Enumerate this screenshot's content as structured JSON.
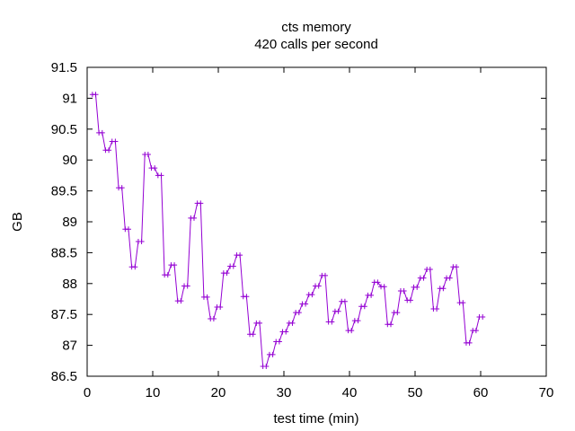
{
  "chart_data": {
    "type": "line",
    "title": "cts memory",
    "subtitle": "420 calls per second",
    "xlabel": "test time (min)",
    "ylabel": "GB",
    "xlim": [
      0,
      70
    ],
    "ylim": [
      86.5,
      91.5
    ],
    "x_ticks": [
      0,
      10,
      20,
      30,
      40,
      50,
      60,
      70
    ],
    "y_ticks": [
      86.5,
      87,
      87.5,
      88,
      88.5,
      89,
      89.5,
      90,
      90.5,
      91,
      91.5
    ],
    "x_tick_labels": [
      "0",
      "10",
      "20",
      "30",
      "40",
      "50",
      "60",
      "70"
    ],
    "y_tick_labels": [
      "86.5",
      "87",
      "87.5",
      "88",
      "88.5",
      "89",
      "89.5",
      "90",
      "90.5",
      "91",
      "91.5"
    ],
    "grid": false,
    "marker": "plus",
    "color": "#9400d3",
    "x": [
      0.8,
      1.3,
      1.8,
      2.3,
      2.8,
      3.3,
      3.8,
      4.3,
      4.8,
      5.3,
      5.8,
      6.3,
      6.8,
      7.3,
      7.8,
      8.3,
      8.8,
      9.3,
      9.8,
      10.3,
      10.8,
      11.3,
      11.8,
      12.3,
      12.8,
      13.3,
      13.8,
      14.3,
      14.8,
      15.3,
      15.8,
      16.3,
      16.8,
      17.3,
      17.8,
      18.3,
      18.8,
      19.3,
      19.8,
      20.3,
      20.8,
      21.3,
      21.8,
      22.3,
      22.8,
      23.3,
      23.8,
      24.3,
      24.8,
      25.3,
      25.8,
      26.3,
      26.8,
      27.3,
      27.8,
      28.3,
      28.8,
      29.3,
      29.8,
      30.3,
      30.8,
      31.3,
      31.8,
      32.3,
      32.8,
      33.3,
      33.8,
      34.3,
      34.8,
      35.3,
      35.8,
      36.3,
      36.8,
      37.3,
      37.8,
      38.3,
      38.8,
      39.3,
      39.8,
      40.3,
      40.8,
      41.3,
      41.8,
      42.3,
      42.8,
      43.3,
      43.8,
      44.3,
      44.8,
      45.3,
      45.8,
      46.3,
      46.8,
      47.3,
      47.8,
      48.3,
      48.8,
      49.3,
      49.8,
      50.3,
      50.8,
      51.3,
      51.8,
      52.3,
      52.8,
      53.3,
      53.8,
      54.3,
      54.8,
      55.3,
      55.8,
      56.3,
      56.8,
      57.3,
      57.8,
      58.3,
      58.8,
      59.3,
      59.8,
      60.3
    ],
    "y": [
      91.06,
      91.06,
      90.44,
      90.44,
      90.16,
      90.16,
      90.3,
      90.3,
      89.55,
      89.55,
      88.88,
      88.88,
      88.27,
      88.27,
      88.68,
      88.68,
      90.09,
      90.09,
      89.87,
      89.87,
      89.75,
      89.75,
      88.14,
      88.14,
      88.3,
      88.3,
      87.72,
      87.72,
      87.96,
      87.96,
      89.06,
      89.06,
      89.3,
      89.3,
      87.78,
      87.78,
      87.43,
      87.43,
      87.62,
      87.62,
      88.17,
      88.17,
      88.28,
      88.28,
      88.46,
      88.46,
      87.79,
      87.79,
      87.18,
      87.18,
      87.36,
      87.36,
      86.66,
      86.66,
      86.85,
      86.85,
      87.06,
      87.06,
      87.22,
      87.22,
      87.36,
      87.36,
      87.53,
      87.53,
      87.67,
      87.67,
      87.82,
      87.82,
      87.96,
      87.96,
      88.13,
      88.13,
      87.38,
      87.38,
      87.55,
      87.55,
      87.71,
      87.71,
      87.24,
      87.24,
      87.4,
      87.4,
      87.63,
      87.63,
      87.81,
      87.81,
      88.02,
      88.02,
      87.95,
      87.95,
      87.34,
      87.34,
      87.53,
      87.53,
      87.88,
      87.88,
      87.73,
      87.73,
      87.94,
      87.94,
      88.09,
      88.09,
      88.23,
      88.23,
      87.59,
      87.59,
      87.92,
      87.92,
      88.09,
      88.09,
      88.27,
      88.27,
      87.69,
      87.69,
      87.04,
      87.04,
      87.24,
      87.24,
      87.46,
      87.46
    ]
  }
}
